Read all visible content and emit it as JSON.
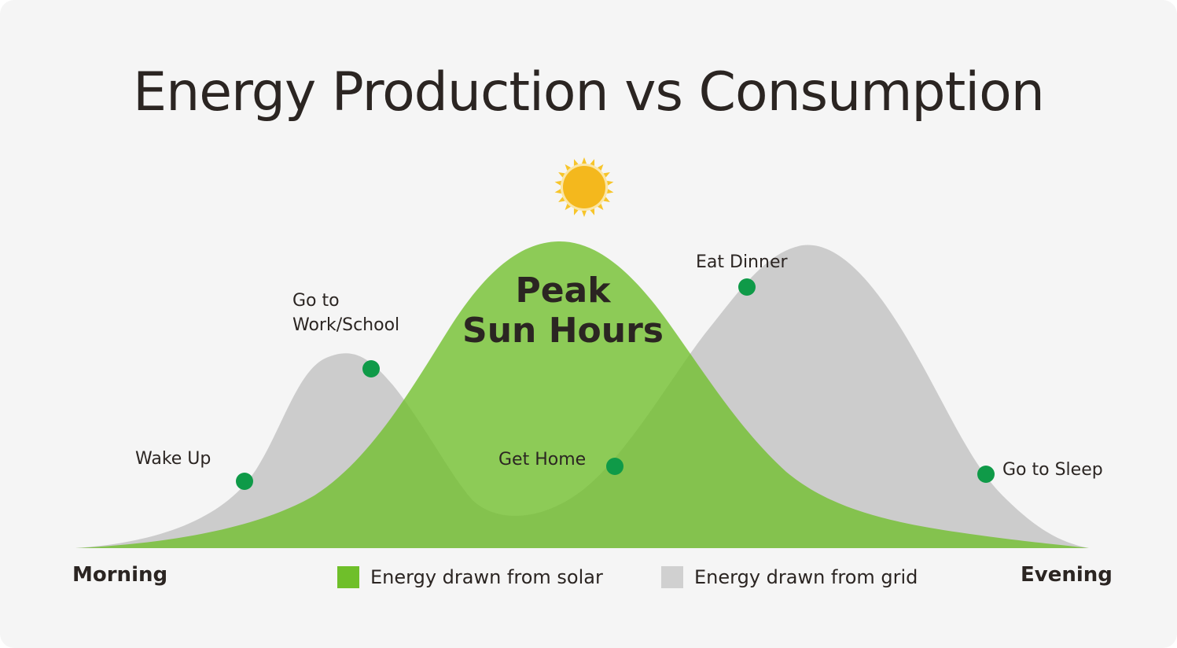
{
  "title": "Energy Production vs Consumption",
  "peak_label": {
    "line1": "Peak",
    "line2": "Sun Hours"
  },
  "axis": {
    "start": "Morning",
    "end": "Evening"
  },
  "events": [
    {
      "id": "wake-up",
      "label": "Wake Up"
    },
    {
      "id": "go-to-work",
      "label_line1": "Go to",
      "label_line2": "Work/School"
    },
    {
      "id": "get-home",
      "label": "Get Home"
    },
    {
      "id": "eat-dinner",
      "label": "Eat Dinner"
    },
    {
      "id": "go-to-sleep",
      "label": "Go to Sleep"
    }
  ],
  "legend": [
    {
      "label": "Energy drawn from solar",
      "color": "#6fbf2a"
    },
    {
      "label": "Energy drawn from grid",
      "color": "#d0d0d0"
    }
  ],
  "colors": {
    "solar": "#6fbf2a",
    "grid": "#cccccc",
    "marker": "#0f9a48",
    "sun": "#f4b81d",
    "sun_rays": "#f7c52a"
  },
  "icons": {
    "sun": "sun-icon"
  }
}
